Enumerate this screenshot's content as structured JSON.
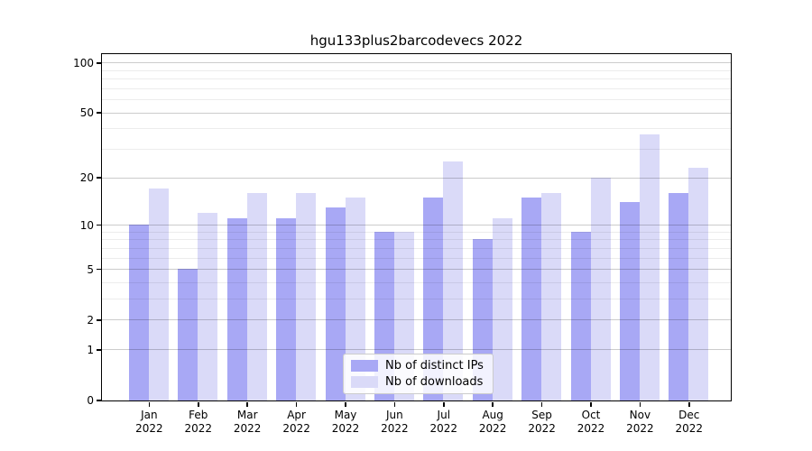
{
  "chart_data": {
    "type": "bar",
    "title": "hgu133plus2barcodevecs 2022",
    "categories": [
      "Jan",
      "Feb",
      "Mar",
      "Apr",
      "May",
      "Jun",
      "Jul",
      "Aug",
      "Sep",
      "Oct",
      "Nov",
      "Dec"
    ],
    "category_year": "2022",
    "series": [
      {
        "name": "Nb of distinct IPs",
        "color": "#a8a8f5",
        "values": [
          10,
          5,
          11,
          11,
          13,
          9,
          15,
          8,
          15,
          9,
          14,
          16
        ]
      },
      {
        "name": "Nb of downloads",
        "color": "#dadaf8",
        "values": [
          17,
          12,
          16,
          16,
          15,
          9,
          25,
          11,
          16,
          20,
          37,
          23
        ]
      }
    ],
    "yscale": "log1p",
    "ylim": [
      0,
      113
    ],
    "yticks_labeled": [
      {
        "v": 100,
        "label": "100"
      },
      {
        "v": 50,
        "label": "50"
      },
      {
        "v": 20,
        "label": "20"
      },
      {
        "v": 10,
        "label": "10"
      },
      {
        "v": 5,
        "label": "5"
      },
      {
        "v": 2,
        "label": "2"
      },
      {
        "v": 1,
        "label": "1"
      },
      {
        "v": 0,
        "label": "0"
      }
    ],
    "gridlines_major": [
      1,
      2,
      5,
      10,
      20,
      50,
      100
    ],
    "gridlines_minor": [
      3,
      4,
      6,
      7,
      8,
      9,
      30,
      40,
      60,
      70,
      80,
      90
    ],
    "grid": "horizontal",
    "legend_position": "bottom-center"
  },
  "colors": {
    "background": "#ffffff",
    "spine": "#000000",
    "major_grid": "#cccccc",
    "minor_grid": "#ececec"
  }
}
